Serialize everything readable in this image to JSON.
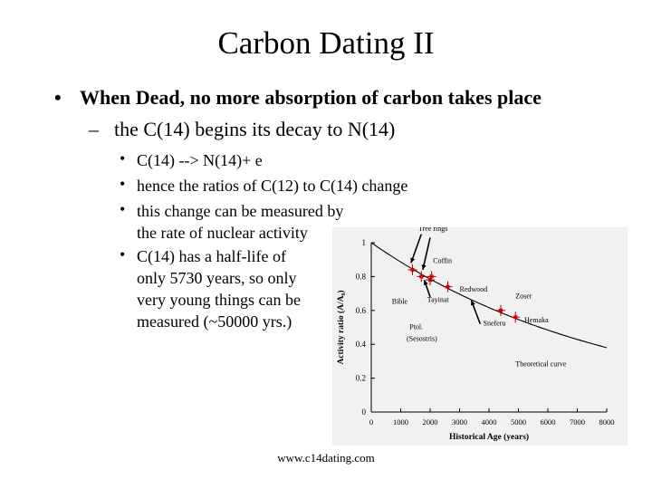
{
  "slide": {
    "title": "Carbon Dating II",
    "bullet1": "When Dead, no more absorption of carbon takes place",
    "sub1": "the C(14) begins its decay to N(14)",
    "items": [
      "C(14) --> N(14)+ e",
      "hence the ratios of C(12) to C(14) change",
      "this change can be measured by\nthe rate of nuclear activity",
      "C(14) has a half-life of\nonly 5730 years, so only\nvery young things can be\nmeasured (~50000 yrs.)"
    ],
    "bullet_char": "•",
    "dash_char": "–",
    "footer": "www.c14dating.com"
  },
  "chart_data": {
    "type": "scatter",
    "xlabel": "Historical Age (years)",
    "ylabel": "Activity ratio (A/A₀)",
    "xlim": [
      0,
      8000
    ],
    "ylim": [
      0,
      1.0
    ],
    "xticks": [
      0,
      1000,
      2000,
      3000,
      4000,
      5000,
      6000,
      7000,
      8000
    ],
    "xtick_labels": [
      "0",
      "1000",
      "2000",
      "3000",
      "4000",
      "5000",
      "6000",
      "7000",
      "8000"
    ],
    "yticks": [
      0,
      0.2,
      0.4,
      0.6,
      0.8,
      1.0
    ],
    "ytick_labels": [
      "0",
      "0.2",
      "0.4",
      "0.6",
      "0.8",
      "1"
    ],
    "curve": {
      "name": "Theoretical curve",
      "half_life": 5730
    },
    "points": [
      {
        "x": 1400,
        "y": 0.84
      },
      {
        "x": 1700,
        "y": 0.8
      },
      {
        "x": 2000,
        "y": 0.78
      },
      {
        "x": 2050,
        "y": 0.8
      },
      {
        "x": 2600,
        "y": 0.74
      },
      {
        "x": 4400,
        "y": 0.6
      },
      {
        "x": 4900,
        "y": 0.56
      }
    ],
    "annotations": [
      {
        "text": "Tree rings",
        "x": 1600,
        "y": 1.07
      },
      {
        "text": "Coffin",
        "x": 2100,
        "y": 0.88
      },
      {
        "text": "Redwood",
        "x": 3000,
        "y": 0.71
      },
      {
        "text": "Bible",
        "x": 700,
        "y": 0.64
      },
      {
        "text": "Tayinat",
        "x": 1900,
        "y": 0.65
      },
      {
        "text": "Zoser",
        "x": 4900,
        "y": 0.67
      },
      {
        "text": "Hemaka",
        "x": 5200,
        "y": 0.53
      },
      {
        "text": "Sneferu",
        "x": 3800,
        "y": 0.51
      },
      {
        "text": "Ptol.",
        "x": 1300,
        "y": 0.49
      },
      {
        "text": "(Sesostris)",
        "x": 1200,
        "y": 0.42
      },
      {
        "text": "Theoretical curve",
        "x": 4900,
        "y": 0.27
      }
    ],
    "grid": false
  }
}
